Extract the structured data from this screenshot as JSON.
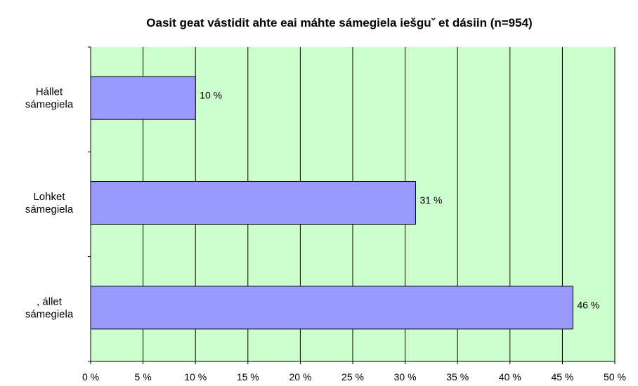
{
  "chart_data": {
    "type": "bar",
    "orientation": "horizontal",
    "title": "Oasit geat vástidit ahte eai máhte sámegiela iešguˇ et dásiin (n=954)",
    "categories": [
      [
        "Hállet",
        "sámegiela"
      ],
      [
        "Lohket",
        "sámegiela"
      ],
      [
        ", állet",
        "sámegiela"
      ]
    ],
    "values": [
      10,
      31,
      46
    ],
    "data_labels": [
      "10 %",
      "31 %",
      "46 %"
    ],
    "xlim": [
      0,
      50
    ],
    "x_ticks": [
      0,
      5,
      10,
      15,
      20,
      25,
      30,
      35,
      40,
      45,
      50
    ],
    "x_tick_labels": [
      "0 %",
      "5 %",
      "10 %",
      "15 %",
      "20 %",
      "25 %",
      "30 %",
      "35 %",
      "40 %",
      "45 %",
      "50 %"
    ],
    "xlabel": "",
    "ylabel": "",
    "grid": true,
    "legend": "none",
    "colors": {
      "plot_background": "#ccffcc",
      "bar_fill": "#9999ff",
      "bar_stroke": "#000000",
      "grid": "#000000"
    }
  }
}
